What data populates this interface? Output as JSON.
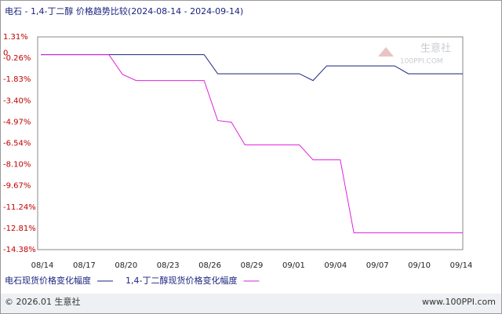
{
  "chart_data": {
    "type": "line",
    "title": "电石 - 1,4-丁二醇 价格趋势比较(2024-08-14 - 2024-09-14)",
    "x_tick_labels": [
      "08/14",
      "08/17",
      "08/20",
      "08/23",
      "08/26",
      "08/29",
      "09/01",
      "09/04",
      "09/07",
      "09/10",
      "09/14"
    ],
    "series": [
      {
        "name": "电石现货价格变化幅度",
        "color": "#1a237e",
        "values": [
          0,
          0,
          0,
          0,
          0,
          0,
          0,
          0,
          0,
          0,
          0,
          0,
          0,
          -1.41,
          -1.41,
          -1.41,
          -1.41,
          -1.41,
          -1.41,
          -1.41,
          -1.91,
          -0.83,
          -0.83,
          -0.83,
          -0.83,
          -0.83,
          -0.83,
          -1.41,
          -1.41,
          -1.41,
          -1.41,
          -1.41
        ]
      },
      {
        "name": "1,4-丁二醇现货价格变化幅度",
        "color": "#e020e0",
        "values": [
          0,
          0,
          0,
          0,
          0,
          0,
          -1.45,
          -1.91,
          -1.91,
          -1.91,
          -1.91,
          -1.91,
          -1.91,
          -4.86,
          -4.98,
          -6.66,
          -6.66,
          -6.66,
          -6.66,
          -6.66,
          -7.76,
          -7.76,
          -7.76,
          -13.14,
          -13.14,
          -13.14,
          -13.14,
          -13.14,
          -13.14,
          -13.14,
          -13.14,
          -13.14
        ]
      }
    ],
    "ylim": [
      -14.38,
      1.31
    ],
    "yticks": [
      {
        "value": 1.31,
        "label": "1.31%"
      },
      {
        "value": -0.26,
        "label": "-0.26%"
      },
      {
        "value": -1.83,
        "label": "-1.83%"
      },
      {
        "value": -3.4,
        "label": "-3.40%"
      },
      {
        "value": -4.97,
        "label": "-4.97%"
      },
      {
        "value": -6.54,
        "label": "-6.54%"
      },
      {
        "value": -8.1,
        "label": "-8.10%"
      },
      {
        "value": -9.67,
        "label": "-9.67%"
      },
      {
        "value": -11.24,
        "label": "-11.24%"
      },
      {
        "value": -12.81,
        "label": "-12.81%"
      },
      {
        "value": -14.38,
        "label": "-14.38%"
      }
    ],
    "zero_tick": 0,
    "watermark": [
      "生意社",
      "100PPI.COM"
    ],
    "footer_left": "© 2026.01 生意社",
    "footer_right": "www.100PPI.com"
  }
}
